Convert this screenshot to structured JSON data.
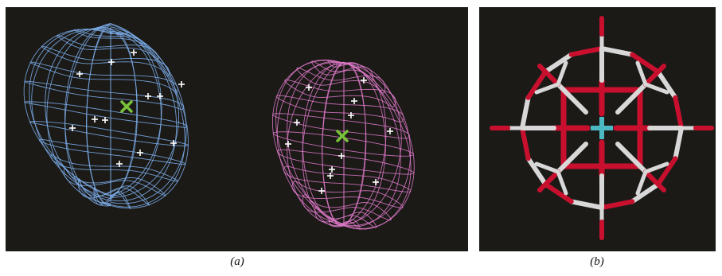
{
  "figure": {
    "panel_a": {
      "caption": "(a)",
      "left_map_color": "#7fb2f0",
      "right_map_color": "#e07acb",
      "marker_color": "#ffffff",
      "centroid_color": "#79c23a"
    },
    "panel_b": {
      "caption": "(b)",
      "oxygen_color": "#c8102e",
      "carbon_color": "#d8d8d8",
      "metal_color": "#4cb8c4"
    }
  }
}
